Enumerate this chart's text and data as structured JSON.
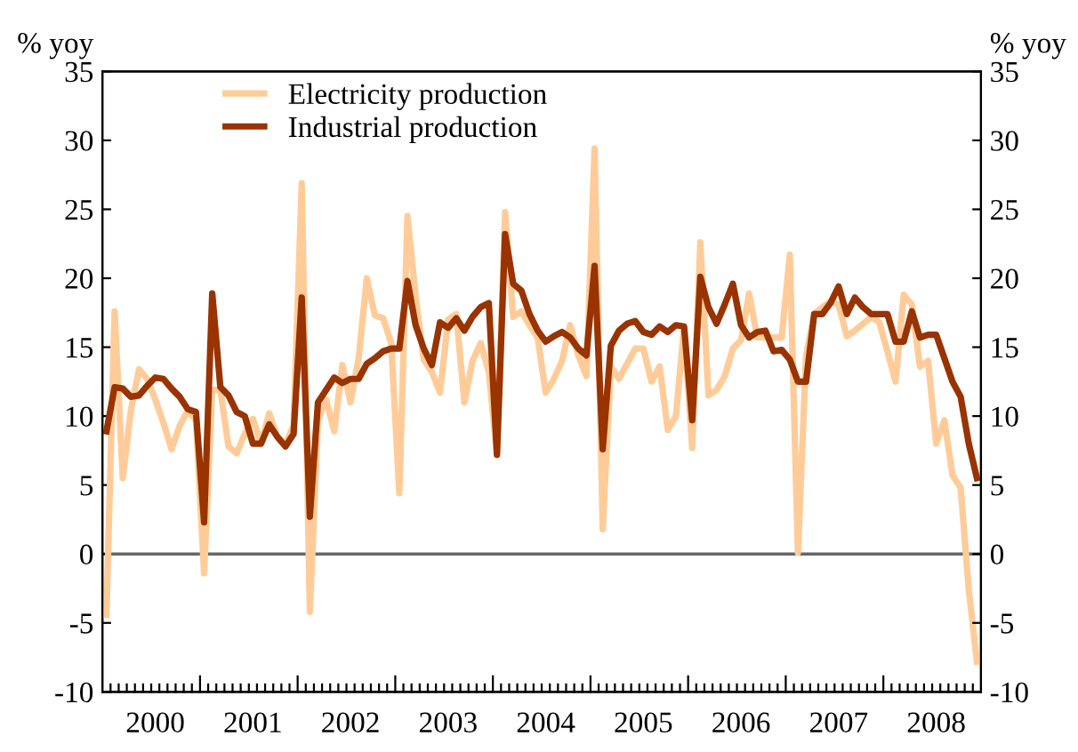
{
  "chart_data": {
    "type": "line",
    "categories": [
      null,
      null,
      null,
      null,
      null,
      null,
      "2000",
      null,
      null,
      null,
      null,
      null,
      null,
      null,
      null,
      null,
      null,
      null,
      "2001",
      null,
      null,
      null,
      null,
      null,
      null,
      null,
      null,
      null,
      null,
      null,
      "2002",
      null,
      null,
      null,
      null,
      null,
      null,
      null,
      null,
      null,
      null,
      null,
      "2003",
      null,
      null,
      null,
      null,
      null,
      null,
      null,
      null,
      null,
      null,
      null,
      "2004",
      null,
      null,
      null,
      null,
      null,
      null,
      null,
      null,
      null,
      null,
      null,
      "2005",
      null,
      null,
      null,
      null,
      null,
      null,
      null,
      null,
      null,
      null,
      null,
      "2006",
      null,
      null,
      null,
      null,
      null,
      null,
      null,
      null,
      null,
      null,
      null,
      "2007",
      null,
      null,
      null,
      null,
      null,
      null,
      null,
      null,
      null,
      null,
      null,
      "2008",
      null,
      null,
      null,
      null,
      null
    ],
    "series": [
      {
        "name": "Electricity production",
        "color": "#ffcc99",
        "values": [
          -4.4,
          17.6,
          5.5,
          10.4,
          13.4,
          12.7,
          11.2,
          9.5,
          7.6,
          9.3,
          10.4,
          9.7,
          -1.4,
          11.9,
          11.9,
          7.8,
          7.3,
          8.7,
          9.8,
          8.0,
          10.2,
          8.5,
          8.0,
          9.3,
          26.9,
          -4.2,
          9.7,
          11.2,
          8.9,
          13.7,
          11.0,
          14.2,
          20.0,
          17.3,
          17.1,
          15.3,
          4.4,
          24.5,
          18.7,
          14.1,
          13.2,
          11.7,
          17.0,
          17.4,
          11.0,
          14.0,
          15.3,
          13.2,
          7.2,
          24.8,
          17.2,
          17.6,
          16.6,
          15.7,
          11.7,
          12.7,
          14.0,
          16.6,
          14.4,
          12.9,
          29.4,
          1.8,
          13.6,
          12.7,
          13.8,
          14.9,
          14.9,
          12.5,
          13.6,
          9.0,
          10.0,
          16.5,
          7.7,
          22.6,
          11.5,
          11.9,
          12.9,
          14.9,
          15.5,
          18.9,
          15.7,
          15.7,
          15.7,
          15.7,
          21.7,
          0.1,
          14.4,
          17.4,
          17.9,
          18.3,
          18.1,
          15.8,
          16.2,
          16.7,
          17.2,
          16.8,
          14.7,
          12.5,
          18.8,
          18.1,
          13.6,
          14.0,
          8.0,
          9.7,
          5.7,
          4.8,
          -2.6,
          -7.8
        ]
      },
      {
        "name": "Industrial production",
        "color": "#993300",
        "values": [
          8.9,
          12.1,
          12.0,
          11.4,
          11.5,
          12.2,
          12.8,
          12.7,
          12.0,
          11.4,
          10.5,
          10.3,
          2.3,
          18.9,
          12.1,
          11.5,
          10.3,
          10.0,
          8.0,
          8.0,
          9.4,
          8.5,
          7.8,
          8.7,
          18.6,
          2.7,
          11.0,
          11.9,
          12.8,
          12.4,
          12.7,
          12.7,
          13.8,
          14.2,
          14.7,
          14.9,
          14.9,
          19.8,
          16.6,
          14.9,
          13.7,
          16.8,
          16.4,
          17.1,
          16.2,
          17.2,
          17.9,
          18.2,
          7.2,
          23.2,
          19.6,
          19.1,
          17.4,
          16.2,
          15.4,
          15.8,
          16.1,
          15.7,
          14.9,
          14.4,
          20.9,
          7.6,
          15.1,
          16.2,
          16.7,
          16.9,
          16.1,
          15.9,
          16.5,
          16.1,
          16.6,
          16.5,
          9.7,
          20.1,
          17.9,
          16.7,
          18.1,
          19.6,
          16.6,
          15.7,
          16.1,
          16.2,
          14.7,
          14.8,
          14.1,
          12.5,
          12.5,
          17.4,
          17.4,
          18.2,
          19.4,
          17.4,
          18.6,
          17.9,
          17.4,
          17.4,
          17.4,
          15.4,
          15.4,
          17.6,
          15.7,
          15.9,
          15.9,
          14.2,
          12.5,
          11.4,
          8.0,
          5.5
        ]
      }
    ],
    "ylim": [
      -10,
      35
    ],
    "yticks": [
      -10,
      -5,
      0,
      5,
      10,
      15,
      20,
      25,
      30,
      35
    ],
    "y2lim": [
      -10,
      35
    ],
    "y2ticks": [
      -10,
      -5,
      0,
      5,
      10,
      15,
      20,
      25,
      30,
      35
    ],
    "ylabel": "% yoy",
    "y2label": "% yoy",
    "ref_lines": [
      {
        "axis": "y",
        "value": 0,
        "color": "#666666"
      }
    ],
    "grid": false,
    "legend": "top left",
    "marker": "none",
    "line_style": "solid"
  }
}
